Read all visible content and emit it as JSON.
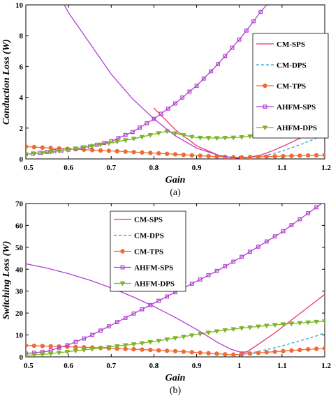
{
  "colors": {
    "CM-SPS": "#e8356d",
    "CM-DPS": "#2f9fd8",
    "CM-TPS": "#f06a36",
    "AHFM-SPS": "#b23fd4",
    "AHFM-DPS": "#7bb524"
  },
  "chart_data": [
    {
      "type": "line",
      "caption": "(a)",
      "xlabel": "Gain",
      "ylabel": "Conduction Loss (W)",
      "xlim": [
        0.5,
        1.2
      ],
      "ylim": [
        0,
        10
      ],
      "xticks": [
        "0.5",
        "0.6",
        "0.7",
        "0.8",
        "0.9",
        "1",
        "1.1",
        "1.2"
      ],
      "yticks": [
        "0",
        "2",
        "4",
        "6",
        "8",
        "10"
      ],
      "grid": false,
      "legend_position": "right",
      "series": [
        {
          "name": "CM-SPS",
          "marker": "none",
          "dash": false,
          "x": [
            0.8,
            0.85,
            0.9,
            0.95,
            0.98,
            1.0,
            1.02,
            1.05,
            1.08,
            1.1,
            1.12,
            1.15,
            1.18,
            1.2
          ],
          "y": [
            3.3,
            1.9,
            0.85,
            0.25,
            0.08,
            0.05,
            0.1,
            0.25,
            0.55,
            0.8,
            1.05,
            1.45,
            1.9,
            2.2
          ]
        },
        {
          "name": "CM-DPS",
          "marker": "none",
          "dash": true,
          "x": [
            1.0,
            1.02,
            1.05,
            1.08,
            1.1,
            1.12,
            1.15,
            1.18,
            1.2
          ],
          "y": [
            0.05,
            0.08,
            0.18,
            0.35,
            0.5,
            0.7,
            1.0,
            1.35,
            1.6
          ]
        },
        {
          "name": "CM-TPS",
          "marker": "circle",
          "dash": false,
          "x": [
            0.5,
            0.55,
            0.6,
            0.65,
            0.7,
            0.75,
            0.8,
            0.85,
            0.9,
            0.95,
            1.0,
            1.05,
            1.1,
            1.15,
            1.2
          ],
          "y": [
            0.8,
            0.72,
            0.65,
            0.58,
            0.52,
            0.45,
            0.38,
            0.3,
            0.22,
            0.15,
            0.1,
            0.14,
            0.18,
            0.22,
            0.25
          ]
        },
        {
          "name": "AHFM-SPS",
          "marker": "square",
          "dash": false,
          "x": [
            0.5,
            0.55,
            0.6,
            0.65,
            0.7,
            0.75,
            0.8,
            0.85,
            0.9,
            0.95,
            1.0,
            1.02,
            1.05,
            1.08,
            1.1
          ],
          "y": [
            0.3,
            0.45,
            0.6,
            0.8,
            1.15,
            1.75,
            2.6,
            3.6,
            4.75,
            6.15,
            7.75,
            8.45,
            9.55,
            10.5,
            11.2
          ]
        },
        {
          "name": "AHFM-DPS",
          "marker": "triangle-down",
          "dash": false,
          "x": [
            0.5,
            0.55,
            0.6,
            0.65,
            0.7,
            0.75,
            0.8,
            0.83,
            0.86,
            0.9,
            0.95,
            1.0,
            1.05,
            1.1,
            1.15,
            1.2
          ],
          "y": [
            0.3,
            0.42,
            0.6,
            0.82,
            1.05,
            1.3,
            1.6,
            1.8,
            1.6,
            1.38,
            1.35,
            1.4,
            1.55,
            1.75,
            1.95,
            2.2
          ]
        },
        {
          "name": "",
          "marker": "none",
          "dash": false,
          "color_of": "AHFM-SPS",
          "x": [
            0.54,
            0.6,
            0.65,
            0.7,
            0.75,
            0.8,
            0.85,
            0.9,
            0.95,
            0.98,
            1.0
          ],
          "y": [
            12.5,
            9.5,
            7.5,
            5.5,
            3.9,
            2.6,
            1.5,
            0.7,
            0.25,
            0.1,
            0.05
          ]
        }
      ]
    },
    {
      "type": "line",
      "caption": "(b)",
      "xlabel": "Gain",
      "ylabel": "Switching Loss (W)",
      "xlim": [
        0.5,
        1.2
      ],
      "ylim": [
        0,
        70
      ],
      "xticks": [
        "0.5",
        "0.6",
        "0.7",
        "0.8",
        "0.9",
        "1",
        "1.1",
        "1.2"
      ],
      "yticks": [
        "0",
        "10",
        "20",
        "30",
        "40",
        "50",
        "60",
        "70"
      ],
      "grid": false,
      "legend_position": "top-left",
      "series": [
        {
          "name": "CM-SPS",
          "marker": "none",
          "dash": false,
          "x": [
            1.0,
            1.02,
            1.05,
            1.08,
            1.1,
            1.12,
            1.15,
            1.18,
            1.2
          ],
          "y": [
            1.5,
            2.5,
            6.5,
            10.5,
            13.5,
            16.5,
            21,
            25.5,
            28.5
          ]
        },
        {
          "name": "CM-DPS",
          "marker": "none",
          "dash": true,
          "x": [
            1.0,
            1.02,
            1.05,
            1.08,
            1.1,
            1.12,
            1.15,
            1.18,
            1.2
          ],
          "y": [
            1.0,
            1.5,
            2.7,
            4.0,
            5.0,
            6.1,
            7.8,
            9.5,
            11
          ]
        },
        {
          "name": "CM-TPS",
          "marker": "circle",
          "dash": false,
          "x": [
            0.5,
            0.55,
            0.6,
            0.65,
            0.7,
            0.75,
            0.8,
            0.85,
            0.9,
            0.95,
            0.98,
            1.0,
            1.05,
            1.1,
            1.15,
            1.2
          ],
          "y": [
            5.2,
            4.9,
            4.6,
            4.3,
            3.9,
            3.5,
            3.1,
            2.6,
            2.0,
            1.4,
            1.0,
            1.1,
            1.9,
            2.6,
            3.3,
            3.9
          ]
        },
        {
          "name": "AHFM-SPS",
          "marker": "square",
          "dash": false,
          "x": [
            0.5,
            0.55,
            0.6,
            0.65,
            0.7,
            0.75,
            0.8,
            0.85,
            0.9,
            0.95,
            1.0,
            1.05,
            1.1,
            1.15,
            1.2
          ],
          "y": [
            1.5,
            2.5,
            5.5,
            9.5,
            14.5,
            19.5,
            24.5,
            29.5,
            34.5,
            39.5,
            45,
            51,
            57,
            64,
            71
          ]
        },
        {
          "name": "AHFM-DPS",
          "marker": "triangle-down",
          "dash": false,
          "x": [
            0.5,
            0.55,
            0.6,
            0.65,
            0.7,
            0.75,
            0.8,
            0.85,
            0.9,
            0.95,
            1.0,
            1.05,
            1.1,
            1.15,
            1.2
          ],
          "y": [
            0.7,
            1.3,
            2.4,
            3.5,
            4.6,
            5.7,
            7.0,
            8.6,
            10.2,
            11.8,
            13.0,
            14.0,
            14.9,
            15.6,
            16.3
          ]
        },
        {
          "name": "",
          "marker": "none",
          "dash": false,
          "color_of": "AHFM-SPS",
          "x": [
            0.5,
            0.55,
            0.6,
            0.65,
            0.7,
            0.75,
            0.8,
            0.85,
            0.9,
            0.95,
            0.98,
            1.0,
            1.02
          ],
          "y": [
            42.5,
            40.5,
            38,
            35,
            31.5,
            27.5,
            23,
            18,
            12.5,
            6.5,
            3.5,
            2.3,
            2.2
          ]
        }
      ]
    }
  ]
}
